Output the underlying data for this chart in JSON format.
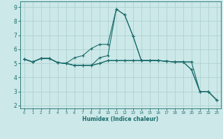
{
  "xlabel": "Humidex (Indice chaleur)",
  "bg_color": "#cce8e8",
  "line_color": "#1a6b6b",
  "grid_color": "#aacece",
  "xlim": [
    -0.5,
    23.5
  ],
  "ylim": [
    1.8,
    9.4
  ],
  "xticks": [
    0,
    1,
    2,
    3,
    4,
    5,
    6,
    7,
    8,
    9,
    10,
    11,
    12,
    13,
    14,
    15,
    16,
    17,
    18,
    19,
    20,
    21,
    22,
    23
  ],
  "yticks": [
    2,
    3,
    4,
    5,
    6,
    7,
    8,
    9
  ],
  "curves": [
    {
      "x": [
        0,
        1,
        2,
        3,
        4,
        5,
        6,
        7,
        8,
        9,
        10,
        11,
        12,
        13,
        14,
        15,
        16,
        17,
        18,
        19,
        20,
        21,
        22,
        23
      ],
      "y": [
        5.3,
        5.1,
        5.35,
        5.35,
        5.05,
        5.0,
        4.85,
        4.85,
        4.85,
        5.4,
        5.55,
        8.85,
        8.45,
        6.95,
        5.2,
        5.2,
        5.2,
        5.15,
        5.1,
        5.1,
        5.1,
        3.0,
        3.0,
        2.4
      ]
    },
    {
      "x": [
        0,
        1,
        2,
        3,
        4,
        5,
        6,
        7,
        8,
        9,
        10,
        11,
        12,
        13,
        14,
        15,
        16,
        17,
        18,
        19,
        20,
        21,
        22,
        23
      ],
      "y": [
        5.3,
        5.1,
        5.35,
        5.35,
        5.05,
        5.0,
        5.4,
        5.55,
        6.05,
        6.35,
        6.35,
        8.85,
        8.45,
        6.95,
        5.2,
        5.2,
        5.2,
        5.15,
        5.1,
        5.1,
        4.55,
        3.0,
        3.0,
        2.4
      ]
    },
    {
      "x": [
        0,
        1,
        2,
        3,
        4,
        5,
        6,
        7,
        8,
        9,
        10,
        11,
        12,
        13,
        14,
        15,
        16,
        17,
        18,
        19,
        20
      ],
      "y": [
        5.3,
        5.1,
        5.35,
        5.35,
        5.05,
        5.0,
        4.85,
        4.85,
        4.85,
        5.0,
        5.2,
        5.2,
        5.2,
        5.2,
        5.2,
        5.2,
        5.2,
        5.15,
        5.1,
        5.1,
        5.1
      ]
    },
    {
      "x": [
        0,
        1,
        2,
        3,
        4,
        5,
        6,
        7,
        8,
        9,
        10,
        11,
        12,
        13,
        14,
        15,
        16,
        17,
        18,
        19,
        20,
        21,
        22,
        23
      ],
      "y": [
        5.3,
        5.1,
        5.35,
        5.35,
        5.05,
        5.0,
        4.85,
        4.85,
        4.85,
        5.0,
        5.2,
        5.2,
        5.2,
        5.2,
        5.2,
        5.2,
        5.2,
        5.15,
        5.1,
        5.1,
        4.55,
        3.0,
        3.0,
        2.4
      ]
    }
  ]
}
